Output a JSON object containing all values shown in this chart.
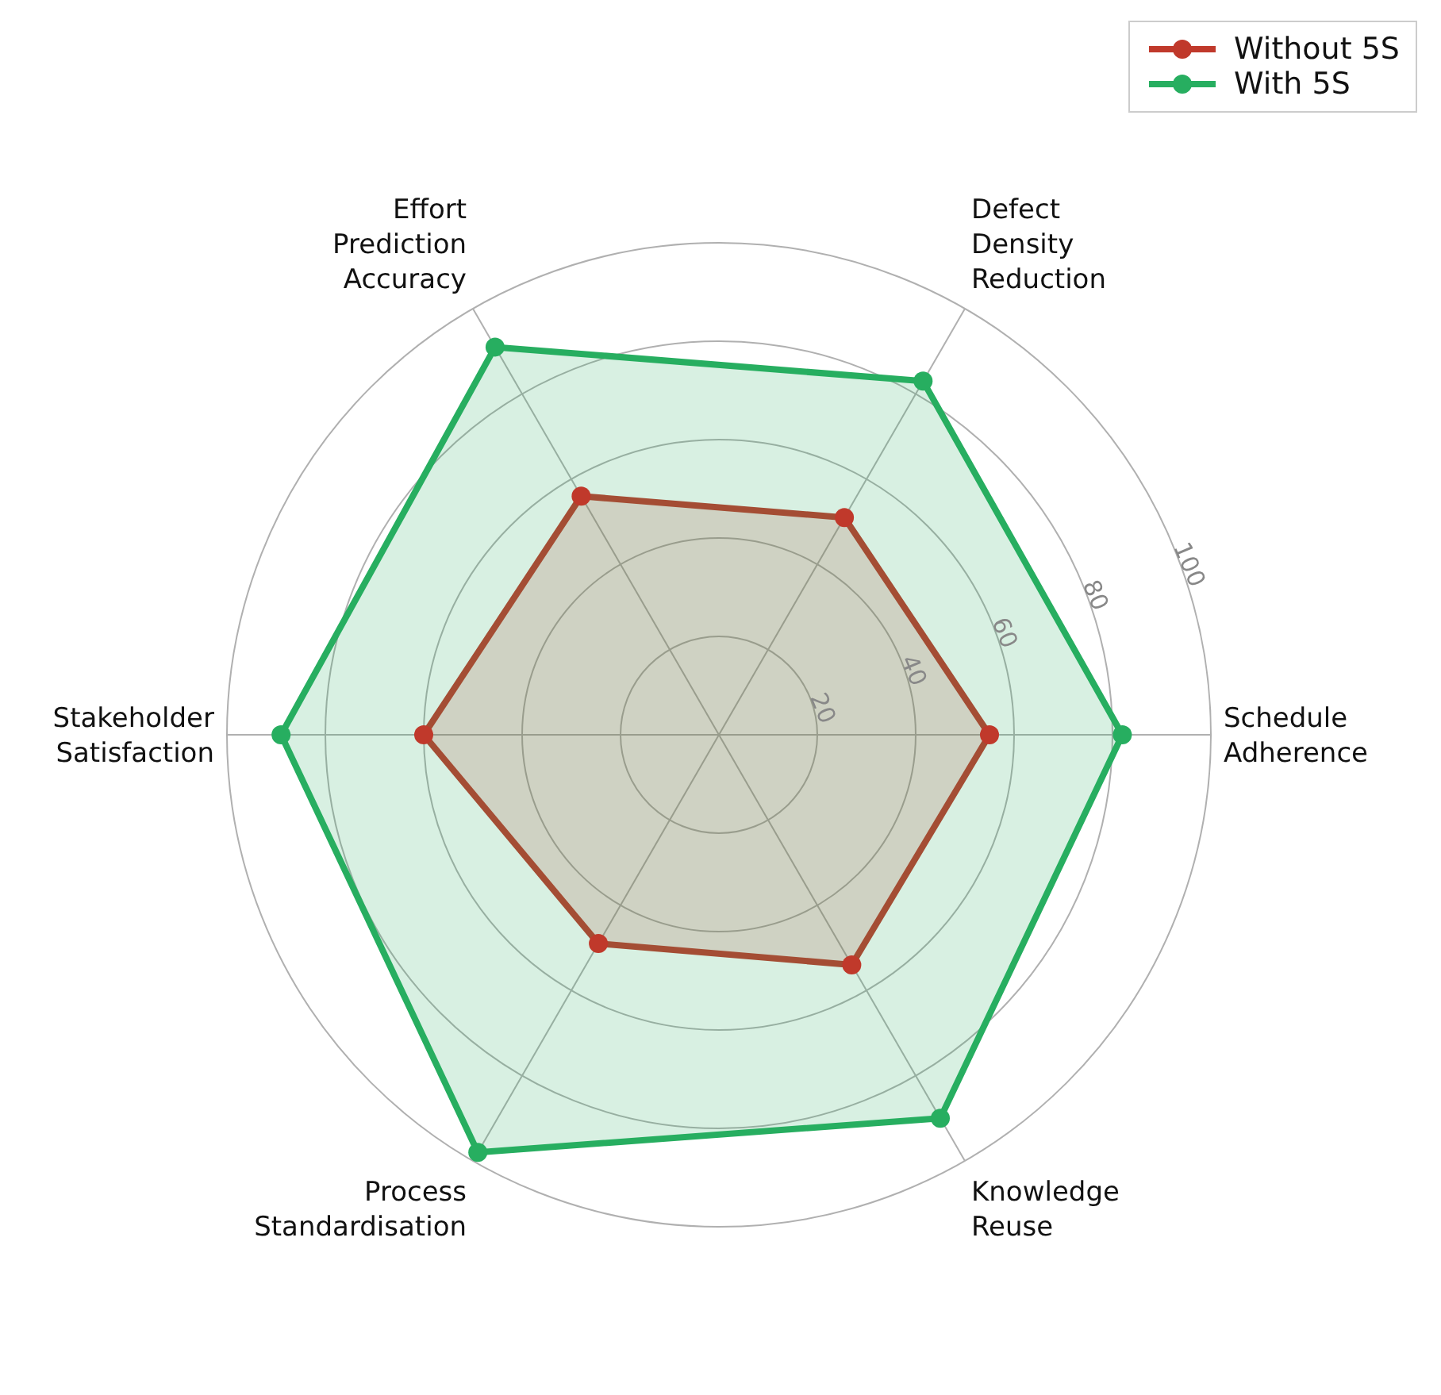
{
  "chart_data": {
    "type": "radar",
    "categories": [
      "Defect Density Reduction",
      "Schedule Adherence",
      "Knowledge Reuse",
      "Process Standardisation",
      "Stakeholder Satisfaction",
      "Effort Prediction Accuracy"
    ],
    "series": [
      {
        "name": "Without 5S",
        "color": "#c0392b",
        "values": [
          51,
          55,
          54,
          49,
          60,
          56
        ]
      },
      {
        "name": "With 5S",
        "color": "#27ae60",
        "values": [
          83,
          82,
          90,
          98,
          89,
          91
        ]
      }
    ],
    "ylim": [
      0,
      100
    ],
    "yticks": [
      20,
      40,
      60,
      80,
      100
    ],
    "grid": true,
    "legend": "top right",
    "marker": "circle"
  }
}
